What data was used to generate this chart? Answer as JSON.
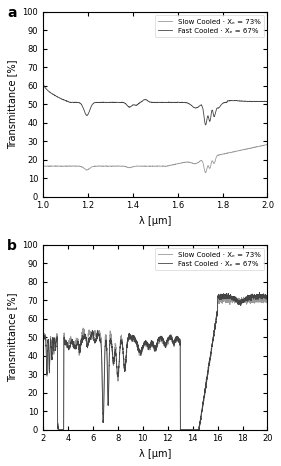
{
  "panel_a_xlabel": "λ [μm]",
  "panel_b_xlabel": "λ [μm]",
  "ylabel": "Transmittance [%]",
  "panel_a_label": "a",
  "panel_b_label": "b",
  "panel_a_xlim": [
    1,
    2
  ],
  "panel_a_ylim": [
    0,
    100
  ],
  "panel_b_xlim": [
    2,
    20
  ],
  "panel_b_ylim": [
    0,
    100
  ],
  "legend_fast": "Fast Cooled · Xₑ = 67%",
  "legend_slow": "Slow Cooled · Xₑ = 73%",
  "color_fast": "#444444",
  "color_slow": "#999999",
  "linewidth": 0.6,
  "background": "#ffffff"
}
